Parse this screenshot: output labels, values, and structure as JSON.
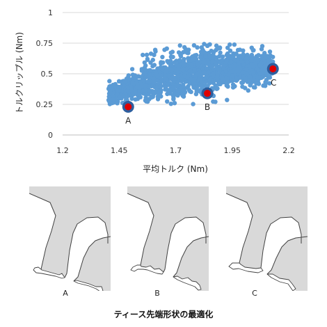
{
  "chart_data": {
    "type": "scatter",
    "title": "",
    "xlabel": "平均トルク (Nm)",
    "ylabel": "トルクリップル (Nm)",
    "xlim": [
      1.2,
      2.2
    ],
    "ylim": [
      0,
      1
    ],
    "x_ticks": [
      "1.2",
      "1.45",
      "1.7",
      "1.95",
      "2.2"
    ],
    "y_ticks": [
      "0",
      "0.25",
      "0.5",
      "0.75",
      "1"
    ],
    "grid": "horizontal",
    "legend": "none",
    "point_color": "#5b9bd5",
    "highlight_color": "#e00000",
    "highlight_ring_color": "#2e5f9e",
    "cloud_description": "dense point cloud trending upward from about (1.4, 0.4) to (2.1, 0.6)",
    "highlighted_points": [
      {
        "label": "A",
        "x": 1.49,
        "y": 0.23
      },
      {
        "label": "B",
        "x": 1.84,
        "y": 0.34
      },
      {
        "label": "C",
        "x": 2.13,
        "y": 0.54
      }
    ]
  },
  "shapes": {
    "labels": [
      "A",
      "B",
      "C"
    ],
    "caption": "ティース先端形状の最適化",
    "fill_color": "#d9d9d9",
    "stroke_color": "#404040"
  }
}
